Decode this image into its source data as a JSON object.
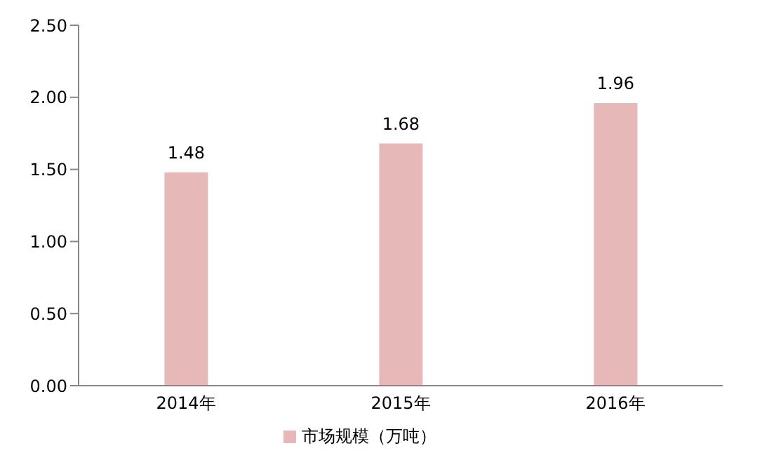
{
  "chart_data": {
    "type": "bar",
    "categories": [
      "2014年",
      "2015年",
      "2016年"
    ],
    "series": [
      {
        "name": "市场规模（万吨）",
        "color": "#e6b9b8",
        "values": [
          1.48,
          1.68,
          1.96
        ]
      }
    ],
    "ylim": [
      0,
      2.5
    ],
    "yticks": [
      {
        "value": 0,
        "label": "0.00"
      },
      {
        "value": 0.5,
        "label": "0.50"
      },
      {
        "value": 1,
        "label": "1.00"
      },
      {
        "value": 1.5,
        "label": "1.50"
      },
      {
        "value": 2,
        "label": "2.00"
      },
      {
        "value": 2.5,
        "label": "2.50"
      }
    ],
    "data_labels": true,
    "legend": "bottom"
  }
}
